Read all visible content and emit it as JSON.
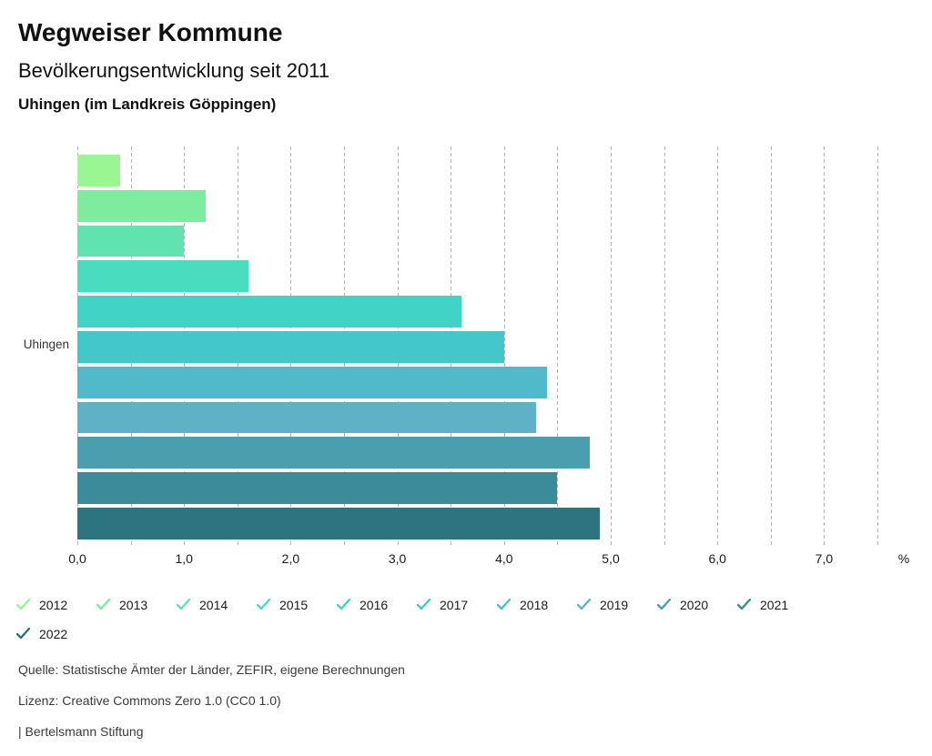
{
  "header": {
    "title": "Wegweiser Kommune",
    "subtitle": "Bevölkerungsentwicklung seit 2011",
    "region": "Uhingen (im Landkreis Göppingen)"
  },
  "chart_data": {
    "type": "bar",
    "orientation": "horizontal",
    "title": "Bevölkerungsentwicklung seit 2011",
    "group_label": "Uhingen",
    "categories": [
      "2012",
      "2013",
      "2014",
      "2015",
      "2016",
      "2017",
      "2018",
      "2019",
      "2020",
      "2021",
      "2022"
    ],
    "values": [
      0.4,
      1.2,
      1.0,
      1.6,
      3.6,
      4.0,
      4.4,
      4.3,
      4.8,
      4.5,
      4.9
    ],
    "colors": [
      "#9AF593",
      "#7DEC9F",
      "#60E3AE",
      "#4ADCBE",
      "#41D4C6",
      "#43C7CB",
      "#50BACA",
      "#5FB2C5",
      "#4A9EAE",
      "#3C8B9B",
      "#2D7380"
    ],
    "unit": "%",
    "xlim": [
      0,
      7.5
    ],
    "x_tick_step": 1.0,
    "x_tick_labels": [
      "0,0",
      "1,0",
      "2,0",
      "3,0",
      "4,0",
      "5,0",
      "6,0",
      "7,0"
    ],
    "x_axis_unit_label": "%",
    "grid": {
      "show": true,
      "step": 0.5,
      "style": "dashed",
      "color": "#b3b3b3"
    },
    "legend_position": "bottom"
  },
  "footer": {
    "source_line": "Quelle: Statistische Ämter der Länder, ZEFIR, eigene Berechnungen",
    "license_line": "Lizenz: Creative Commons Zero 1.0 (CC0 1.0)",
    "attribution_line": "| Bertelsmann Stiftung"
  }
}
